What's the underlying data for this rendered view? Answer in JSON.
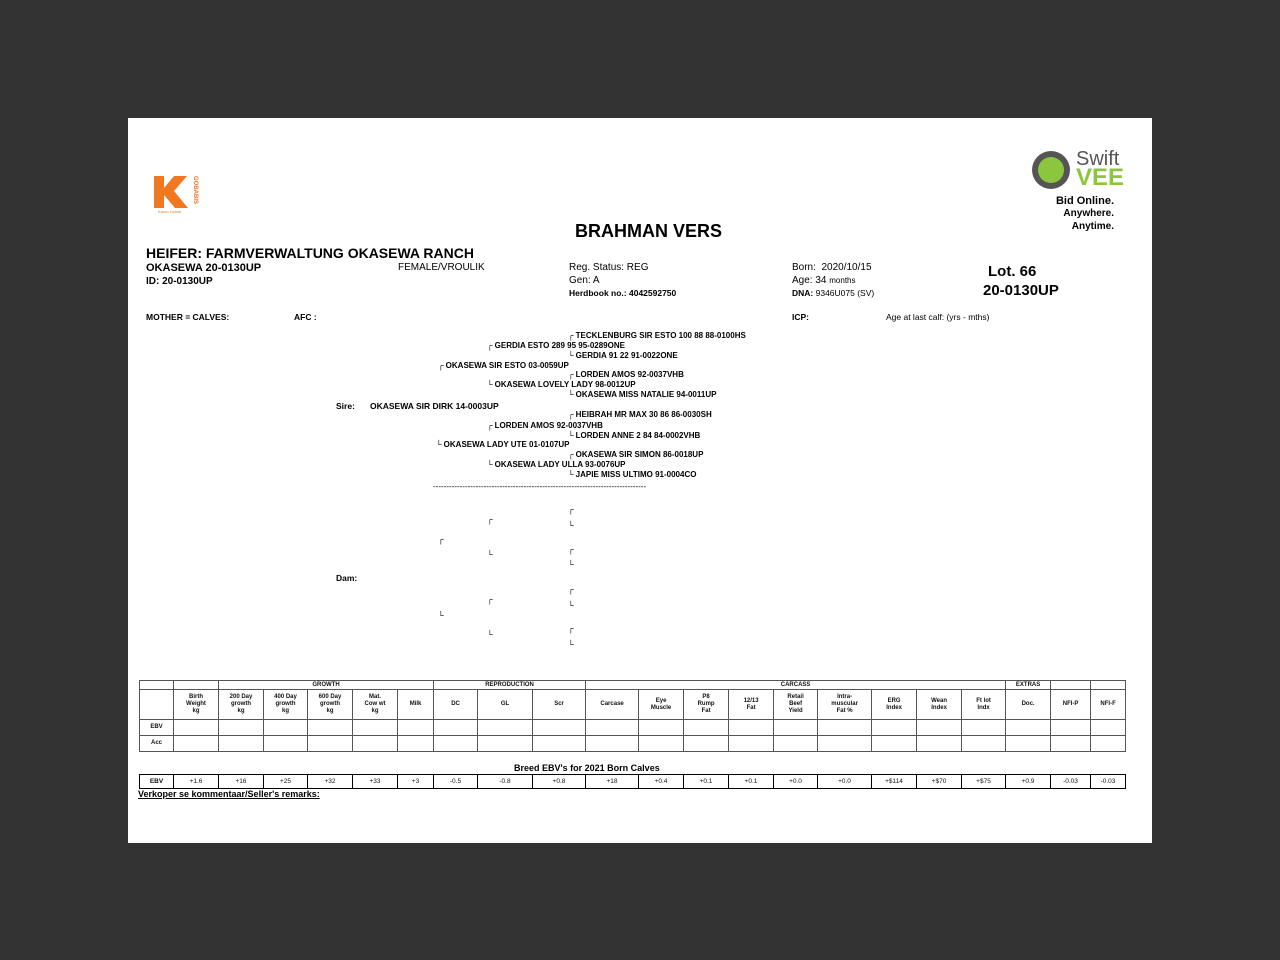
{
  "logos": {
    "left": {
      "letter": "K",
      "text": "GOBABIS",
      "sub": "Karoo Ochse",
      "color": "#f07820"
    },
    "right": {
      "top": "Swift",
      "brand": "VEE",
      "line1": "Bid Online.",
      "line2": "Anywhere.",
      "line3": "Anytime.",
      "color": "#8cc63f"
    }
  },
  "title": "BRAHMAN VERS",
  "animal": {
    "heading": "HEIFER:  FARMVERWALTUNG OKASEWA RANCH",
    "name": "OKASEWA 20-0130UP",
    "sex": "FEMALE/VROULIK",
    "id": "ID:  20-0130UP",
    "mother_calves": "MOTHER = CALVES:",
    "afc": "AFC :",
    "reg_status": "Reg. Status: REG",
    "gen": "Gen: A",
    "herdbook_label": "Herdbook no.:",
    "herdbook": "4042592750",
    "born_label": "Born:",
    "born": "2020/10/15",
    "age_label": "Age:",
    "age": "34",
    "age_unit": "months",
    "dna_label": "DNA:",
    "dna": "9346U075 (SV)",
    "icp": "ICP:",
    "age_last_calf": "Age at  last calf:  (yrs - mths)",
    "lot": "Lot.  66",
    "lot_id": "20-0130UP"
  },
  "pedigree": {
    "sire_label": "Sire:",
    "sire": "OKASEWA SIR DIRK 14-0003UP",
    "dam_label": "Dam:",
    "separator": "--------------------------------------------------------------------------------",
    "sire_entries": [
      {
        "bracket": "┌",
        "name": "TECKLENBURG SIR ESTO 100 88 88-0100HS"
      },
      {
        "bracket": "┌",
        "name": "GERDIA ESTO 289 95 95-0289ONE"
      },
      {
        "bracket": "└",
        "name": "GERDIA 91 22 91-0022ONE"
      },
      {
        "bracket": "┌",
        "name": "OKASEWA SIR ESTO 03-0059UP"
      },
      {
        "bracket": "┌",
        "name": "LORDEN AMOS 92-0037VHB"
      },
      {
        "bracket": "└",
        "name": "OKASEWA LOVELY LADY 98-0012UP"
      },
      {
        "bracket": "└",
        "name": "OKASEWA MISS NATALIE 94-0011UP"
      },
      {
        "bracket": "┌",
        "name": "HEIBRAH MR MAX 30 86 86-0030SH"
      },
      {
        "bracket": "┌",
        "name": "LORDEN AMOS 92-0037VHB"
      },
      {
        "bracket": "└",
        "name": "LORDEN ANNE 2 84 84-0002VHB"
      },
      {
        "bracket": "└",
        "name": "OKASEWA LADY UTE 01-0107UP"
      },
      {
        "bracket": "┌",
        "name": "OKASEWA SIR SIMON 86-0018UP"
      },
      {
        "bracket": "└",
        "name": "OKASEWA LADY ULLA 93-0076UP"
      },
      {
        "bracket": "└",
        "name": "JAPIE MISS ULTIMO 91-0004CO"
      }
    ],
    "dam_brackets": [
      "┌",
      "┌",
      "└",
      "┌",
      "┌",
      "└",
      "└",
      "┌",
      "┌",
      "└",
      "└",
      "┌",
      "└",
      "└"
    ]
  },
  "ebv_table": {
    "groups": [
      {
        "label": "",
        "span": 1
      },
      {
        "label": "",
        "span": 1
      },
      {
        "label": "GROWTH",
        "span": 5
      },
      {
        "label": "REPRODUCTION",
        "span": 3
      },
      {
        "label": "CARCASS",
        "span": 9
      },
      {
        "label": "EXTRAS",
        "span": 1
      },
      {
        "label": "",
        "span": 1
      },
      {
        "label": "",
        "span": 1
      }
    ],
    "headers": [
      "",
      "Birth\nWeight\nkg",
      "200 Day\ngrowth\nkg",
      "400 Day\ngrowth\nkg",
      "600 Day\ngrowth\nkg",
      "Mat.\nCow wt\nkg",
      "Milk",
      "DC",
      "GL",
      "Scr",
      "Carcase",
      "Eye\nMuscle",
      "P8\nRump\nFat",
      "12/13\nFat",
      "Retail\nBeef\nYield",
      "Intra-\nmuscular\nFat %",
      "ERG\nIndex",
      "Wean\nIndex",
      "Ft lot\nIndx",
      "Doc.",
      "NFI-P",
      "NFI-F"
    ],
    "rows": [
      {
        "label": "EBV"
      },
      {
        "label": "Acc"
      }
    ]
  },
  "breed": {
    "title": "Breed EBV's for 2021 Born Calves",
    "label": "EBV",
    "values": [
      "+1.6",
      "+16",
      "+25",
      "+32",
      "+33",
      "+3",
      "-0.5",
      "-0.8",
      "+0.8",
      "+18",
      "+0.4",
      "+0.1",
      "+0.1",
      "+0.0",
      "+0.0",
      "+$114",
      "+$70",
      "+$75",
      "+0.9",
      "-0.03",
      "-0.03"
    ]
  },
  "remarks": "Verkoper se kommentaar/Seller's remarks:"
}
